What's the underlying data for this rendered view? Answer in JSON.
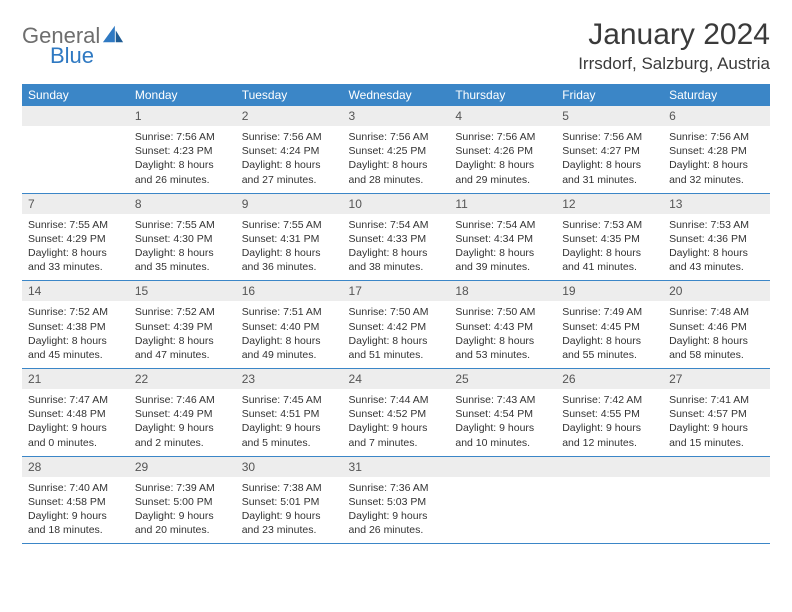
{
  "logo": {
    "general": "General",
    "blue": "Blue"
  },
  "title": "January 2024",
  "location": "Irrsdorf, Salzburg, Austria",
  "colors": {
    "header_bg": "#3b86c7",
    "header_text": "#ffffff",
    "daynum_bg": "#ededed",
    "rule": "#3b86c7",
    "logo_gray": "#6e6e6e",
    "logo_blue": "#2f79c2"
  },
  "weekdays": [
    "Sunday",
    "Monday",
    "Tuesday",
    "Wednesday",
    "Thursday",
    "Friday",
    "Saturday"
  ],
  "weeks": [
    [
      {
        "n": "",
        "lines": [
          "",
          "",
          "",
          ""
        ]
      },
      {
        "n": "1",
        "lines": [
          "Sunrise: 7:56 AM",
          "Sunset: 4:23 PM",
          "Daylight: 8 hours",
          "and 26 minutes."
        ]
      },
      {
        "n": "2",
        "lines": [
          "Sunrise: 7:56 AM",
          "Sunset: 4:24 PM",
          "Daylight: 8 hours",
          "and 27 minutes."
        ]
      },
      {
        "n": "3",
        "lines": [
          "Sunrise: 7:56 AM",
          "Sunset: 4:25 PM",
          "Daylight: 8 hours",
          "and 28 minutes."
        ]
      },
      {
        "n": "4",
        "lines": [
          "Sunrise: 7:56 AM",
          "Sunset: 4:26 PM",
          "Daylight: 8 hours",
          "and 29 minutes."
        ]
      },
      {
        "n": "5",
        "lines": [
          "Sunrise: 7:56 AM",
          "Sunset: 4:27 PM",
          "Daylight: 8 hours",
          "and 31 minutes."
        ]
      },
      {
        "n": "6",
        "lines": [
          "Sunrise: 7:56 AM",
          "Sunset: 4:28 PM",
          "Daylight: 8 hours",
          "and 32 minutes."
        ]
      }
    ],
    [
      {
        "n": "7",
        "lines": [
          "Sunrise: 7:55 AM",
          "Sunset: 4:29 PM",
          "Daylight: 8 hours",
          "and 33 minutes."
        ]
      },
      {
        "n": "8",
        "lines": [
          "Sunrise: 7:55 AM",
          "Sunset: 4:30 PM",
          "Daylight: 8 hours",
          "and 35 minutes."
        ]
      },
      {
        "n": "9",
        "lines": [
          "Sunrise: 7:55 AM",
          "Sunset: 4:31 PM",
          "Daylight: 8 hours",
          "and 36 minutes."
        ]
      },
      {
        "n": "10",
        "lines": [
          "Sunrise: 7:54 AM",
          "Sunset: 4:33 PM",
          "Daylight: 8 hours",
          "and 38 minutes."
        ]
      },
      {
        "n": "11",
        "lines": [
          "Sunrise: 7:54 AM",
          "Sunset: 4:34 PM",
          "Daylight: 8 hours",
          "and 39 minutes."
        ]
      },
      {
        "n": "12",
        "lines": [
          "Sunrise: 7:53 AM",
          "Sunset: 4:35 PM",
          "Daylight: 8 hours",
          "and 41 minutes."
        ]
      },
      {
        "n": "13",
        "lines": [
          "Sunrise: 7:53 AM",
          "Sunset: 4:36 PM",
          "Daylight: 8 hours",
          "and 43 minutes."
        ]
      }
    ],
    [
      {
        "n": "14",
        "lines": [
          "Sunrise: 7:52 AM",
          "Sunset: 4:38 PM",
          "Daylight: 8 hours",
          "and 45 minutes."
        ]
      },
      {
        "n": "15",
        "lines": [
          "Sunrise: 7:52 AM",
          "Sunset: 4:39 PM",
          "Daylight: 8 hours",
          "and 47 minutes."
        ]
      },
      {
        "n": "16",
        "lines": [
          "Sunrise: 7:51 AM",
          "Sunset: 4:40 PM",
          "Daylight: 8 hours",
          "and 49 minutes."
        ]
      },
      {
        "n": "17",
        "lines": [
          "Sunrise: 7:50 AM",
          "Sunset: 4:42 PM",
          "Daylight: 8 hours",
          "and 51 minutes."
        ]
      },
      {
        "n": "18",
        "lines": [
          "Sunrise: 7:50 AM",
          "Sunset: 4:43 PM",
          "Daylight: 8 hours",
          "and 53 minutes."
        ]
      },
      {
        "n": "19",
        "lines": [
          "Sunrise: 7:49 AM",
          "Sunset: 4:45 PM",
          "Daylight: 8 hours",
          "and 55 minutes."
        ]
      },
      {
        "n": "20",
        "lines": [
          "Sunrise: 7:48 AM",
          "Sunset: 4:46 PM",
          "Daylight: 8 hours",
          "and 58 minutes."
        ]
      }
    ],
    [
      {
        "n": "21",
        "lines": [
          "Sunrise: 7:47 AM",
          "Sunset: 4:48 PM",
          "Daylight: 9 hours",
          "and 0 minutes."
        ]
      },
      {
        "n": "22",
        "lines": [
          "Sunrise: 7:46 AM",
          "Sunset: 4:49 PM",
          "Daylight: 9 hours",
          "and 2 minutes."
        ]
      },
      {
        "n": "23",
        "lines": [
          "Sunrise: 7:45 AM",
          "Sunset: 4:51 PM",
          "Daylight: 9 hours",
          "and 5 minutes."
        ]
      },
      {
        "n": "24",
        "lines": [
          "Sunrise: 7:44 AM",
          "Sunset: 4:52 PM",
          "Daylight: 9 hours",
          "and 7 minutes."
        ]
      },
      {
        "n": "25",
        "lines": [
          "Sunrise: 7:43 AM",
          "Sunset: 4:54 PM",
          "Daylight: 9 hours",
          "and 10 minutes."
        ]
      },
      {
        "n": "26",
        "lines": [
          "Sunrise: 7:42 AM",
          "Sunset: 4:55 PM",
          "Daylight: 9 hours",
          "and 12 minutes."
        ]
      },
      {
        "n": "27",
        "lines": [
          "Sunrise: 7:41 AM",
          "Sunset: 4:57 PM",
          "Daylight: 9 hours",
          "and 15 minutes."
        ]
      }
    ],
    [
      {
        "n": "28",
        "lines": [
          "Sunrise: 7:40 AM",
          "Sunset: 4:58 PM",
          "Daylight: 9 hours",
          "and 18 minutes."
        ]
      },
      {
        "n": "29",
        "lines": [
          "Sunrise: 7:39 AM",
          "Sunset: 5:00 PM",
          "Daylight: 9 hours",
          "and 20 minutes."
        ]
      },
      {
        "n": "30",
        "lines": [
          "Sunrise: 7:38 AM",
          "Sunset: 5:01 PM",
          "Daylight: 9 hours",
          "and 23 minutes."
        ]
      },
      {
        "n": "31",
        "lines": [
          "Sunrise: 7:36 AM",
          "Sunset: 5:03 PM",
          "Daylight: 9 hours",
          "and 26 minutes."
        ]
      },
      {
        "n": "",
        "lines": [
          "",
          "",
          "",
          ""
        ]
      },
      {
        "n": "",
        "lines": [
          "",
          "",
          "",
          ""
        ]
      },
      {
        "n": "",
        "lines": [
          "",
          "",
          "",
          ""
        ]
      }
    ]
  ]
}
